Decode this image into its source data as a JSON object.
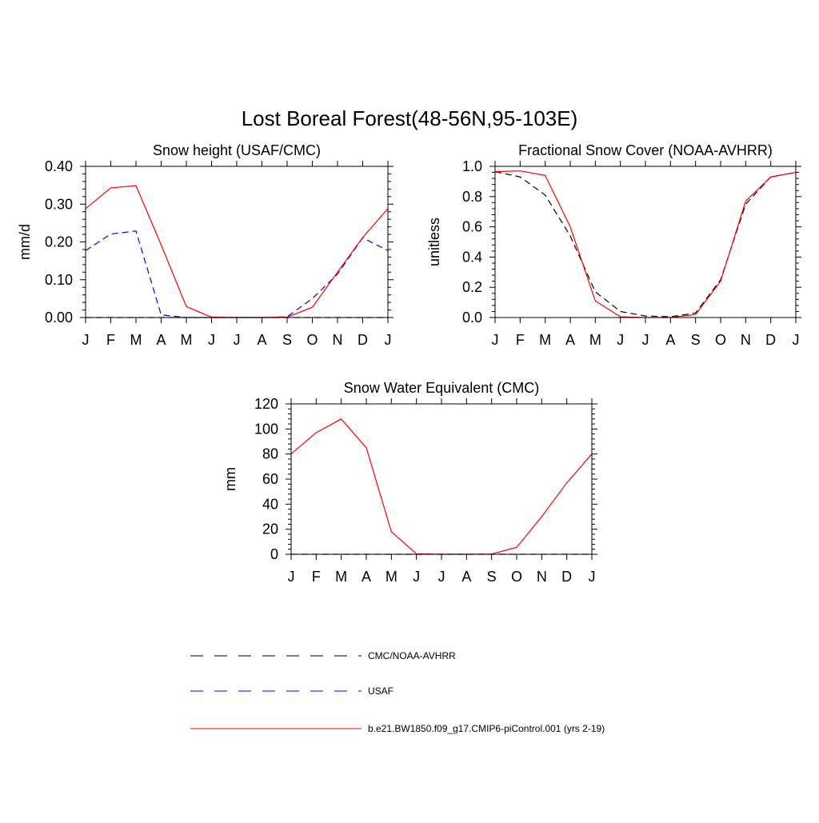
{
  "figure": {
    "title": "Lost Boreal Forest(48-56N,95-103E)"
  },
  "legend": {
    "placement": "bottom",
    "entries": [
      {
        "label": "CMC/NOAA-AVHRR",
        "color": "#000000",
        "dash": "dashed"
      },
      {
        "label": "USAF",
        "color": "#0000ff",
        "dash": "dashed"
      },
      {
        "label": "b.e21.BW1850.f09_g17.CMIP6-piControl.001 (yrs 2-19)",
        "color": "#ff0000",
        "dash": "solid"
      }
    ]
  },
  "chart_data": [
    {
      "type": "line",
      "title": "Snow height (USAF/CMC)",
      "xlabel": "",
      "ylabel": "mm/d",
      "categories": [
        "J",
        "F",
        "M",
        "A",
        "M",
        "J",
        "J",
        "A",
        "S",
        "O",
        "N",
        "D",
        "J"
      ],
      "ylim": [
        0,
        0.4
      ],
      "yticks": [
        "0.00",
        "0.10",
        "0.20",
        "0.30",
        "0.40"
      ],
      "ytick_values": [
        0,
        0.1,
        0.2,
        0.3,
        0.4
      ],
      "grid": false,
      "series": [
        {
          "name": "CMC/NOAA-AVHRR",
          "color": "#000000",
          "dash": "dashed",
          "values": [
            0,
            0,
            0,
            0,
            0,
            0,
            0,
            0,
            0,
            0,
            0,
            0,
            0
          ]
        },
        {
          "name": "USAF",
          "color": "#0000ff",
          "dash": "dashed",
          "values": [
            0.177,
            0.221,
            0.229,
            0.007,
            0,
            0,
            0,
            0,
            0.002,
            0.05,
            0.115,
            0.211,
            0.177
          ]
        },
        {
          "name": "b.e21.BW1850.f09_g17.CMIP6-piControl.001 (yrs 2-19)",
          "color": "#ff0000",
          "dash": "solid",
          "values": [
            0.288,
            0.343,
            0.349,
            0.192,
            0.029,
            0.001,
            0,
            0,
            0.001,
            0.027,
            0.12,
            0.212,
            0.288
          ]
        }
      ]
    },
    {
      "type": "line",
      "title": "Fractional Snow Cover (NOAA-AVHRR)",
      "xlabel": "",
      "ylabel": "unitless",
      "categories": [
        "J",
        "F",
        "M",
        "A",
        "M",
        "J",
        "J",
        "A",
        "S",
        "O",
        "N",
        "D",
        "J"
      ],
      "ylim": [
        0,
        1
      ],
      "yticks": [
        "0.0",
        "0.2",
        "0.4",
        "0.6",
        "0.8",
        "1.0"
      ],
      "ytick_values": [
        0,
        0.2,
        0.4,
        0.6,
        0.8,
        1.0
      ],
      "grid": false,
      "series": [
        {
          "name": "CMC/NOAA-AVHRR",
          "color": "#000000",
          "dash": "dashed",
          "values": [
            0.965,
            0.93,
            0.81,
            0.54,
            0.17,
            0.04,
            0.01,
            0.005,
            0.03,
            0.25,
            0.75,
            0.93,
            0.96
          ]
        },
        {
          "name": "b.e21.BW1850.f09_g17.CMIP6-piControl.001 (yrs 2-19)",
          "color": "#ff0000",
          "dash": "solid",
          "values": [
            0.965,
            0.97,
            0.94,
            0.6,
            0.11,
            0.005,
            0,
            0,
            0.02,
            0.24,
            0.77,
            0.93,
            0.96
          ]
        }
      ]
    },
    {
      "type": "line",
      "title": "Snow Water Equivalent (CMC)",
      "xlabel": "",
      "ylabel": "mm",
      "categories": [
        "J",
        "F",
        "M",
        "A",
        "M",
        "J",
        "J",
        "A",
        "S",
        "O",
        "N",
        "D",
        "J"
      ],
      "ylim": [
        0,
        120
      ],
      "yticks": [
        "0",
        "20",
        "40",
        "60",
        "80",
        "100",
        "120"
      ],
      "ytick_values": [
        0,
        20,
        40,
        60,
        80,
        100,
        120
      ],
      "grid": false,
      "series": [
        {
          "name": "CMC/NOAA-AVHRR",
          "color": "#000000",
          "dash": "dashed",
          "values": [
            0,
            0,
            0,
            0,
            0,
            0,
            0,
            0,
            0,
            0,
            0,
            0,
            0
          ]
        },
        {
          "name": "b.e21.BW1850.f09_g17.CMIP6-piControl.001 (yrs 2-19)",
          "color": "#ff0000",
          "dash": "solid",
          "values": [
            80,
            97,
            108,
            85,
            18,
            0.3,
            0,
            0,
            0.2,
            5.5,
            30,
            57,
            80
          ]
        }
      ]
    }
  ]
}
